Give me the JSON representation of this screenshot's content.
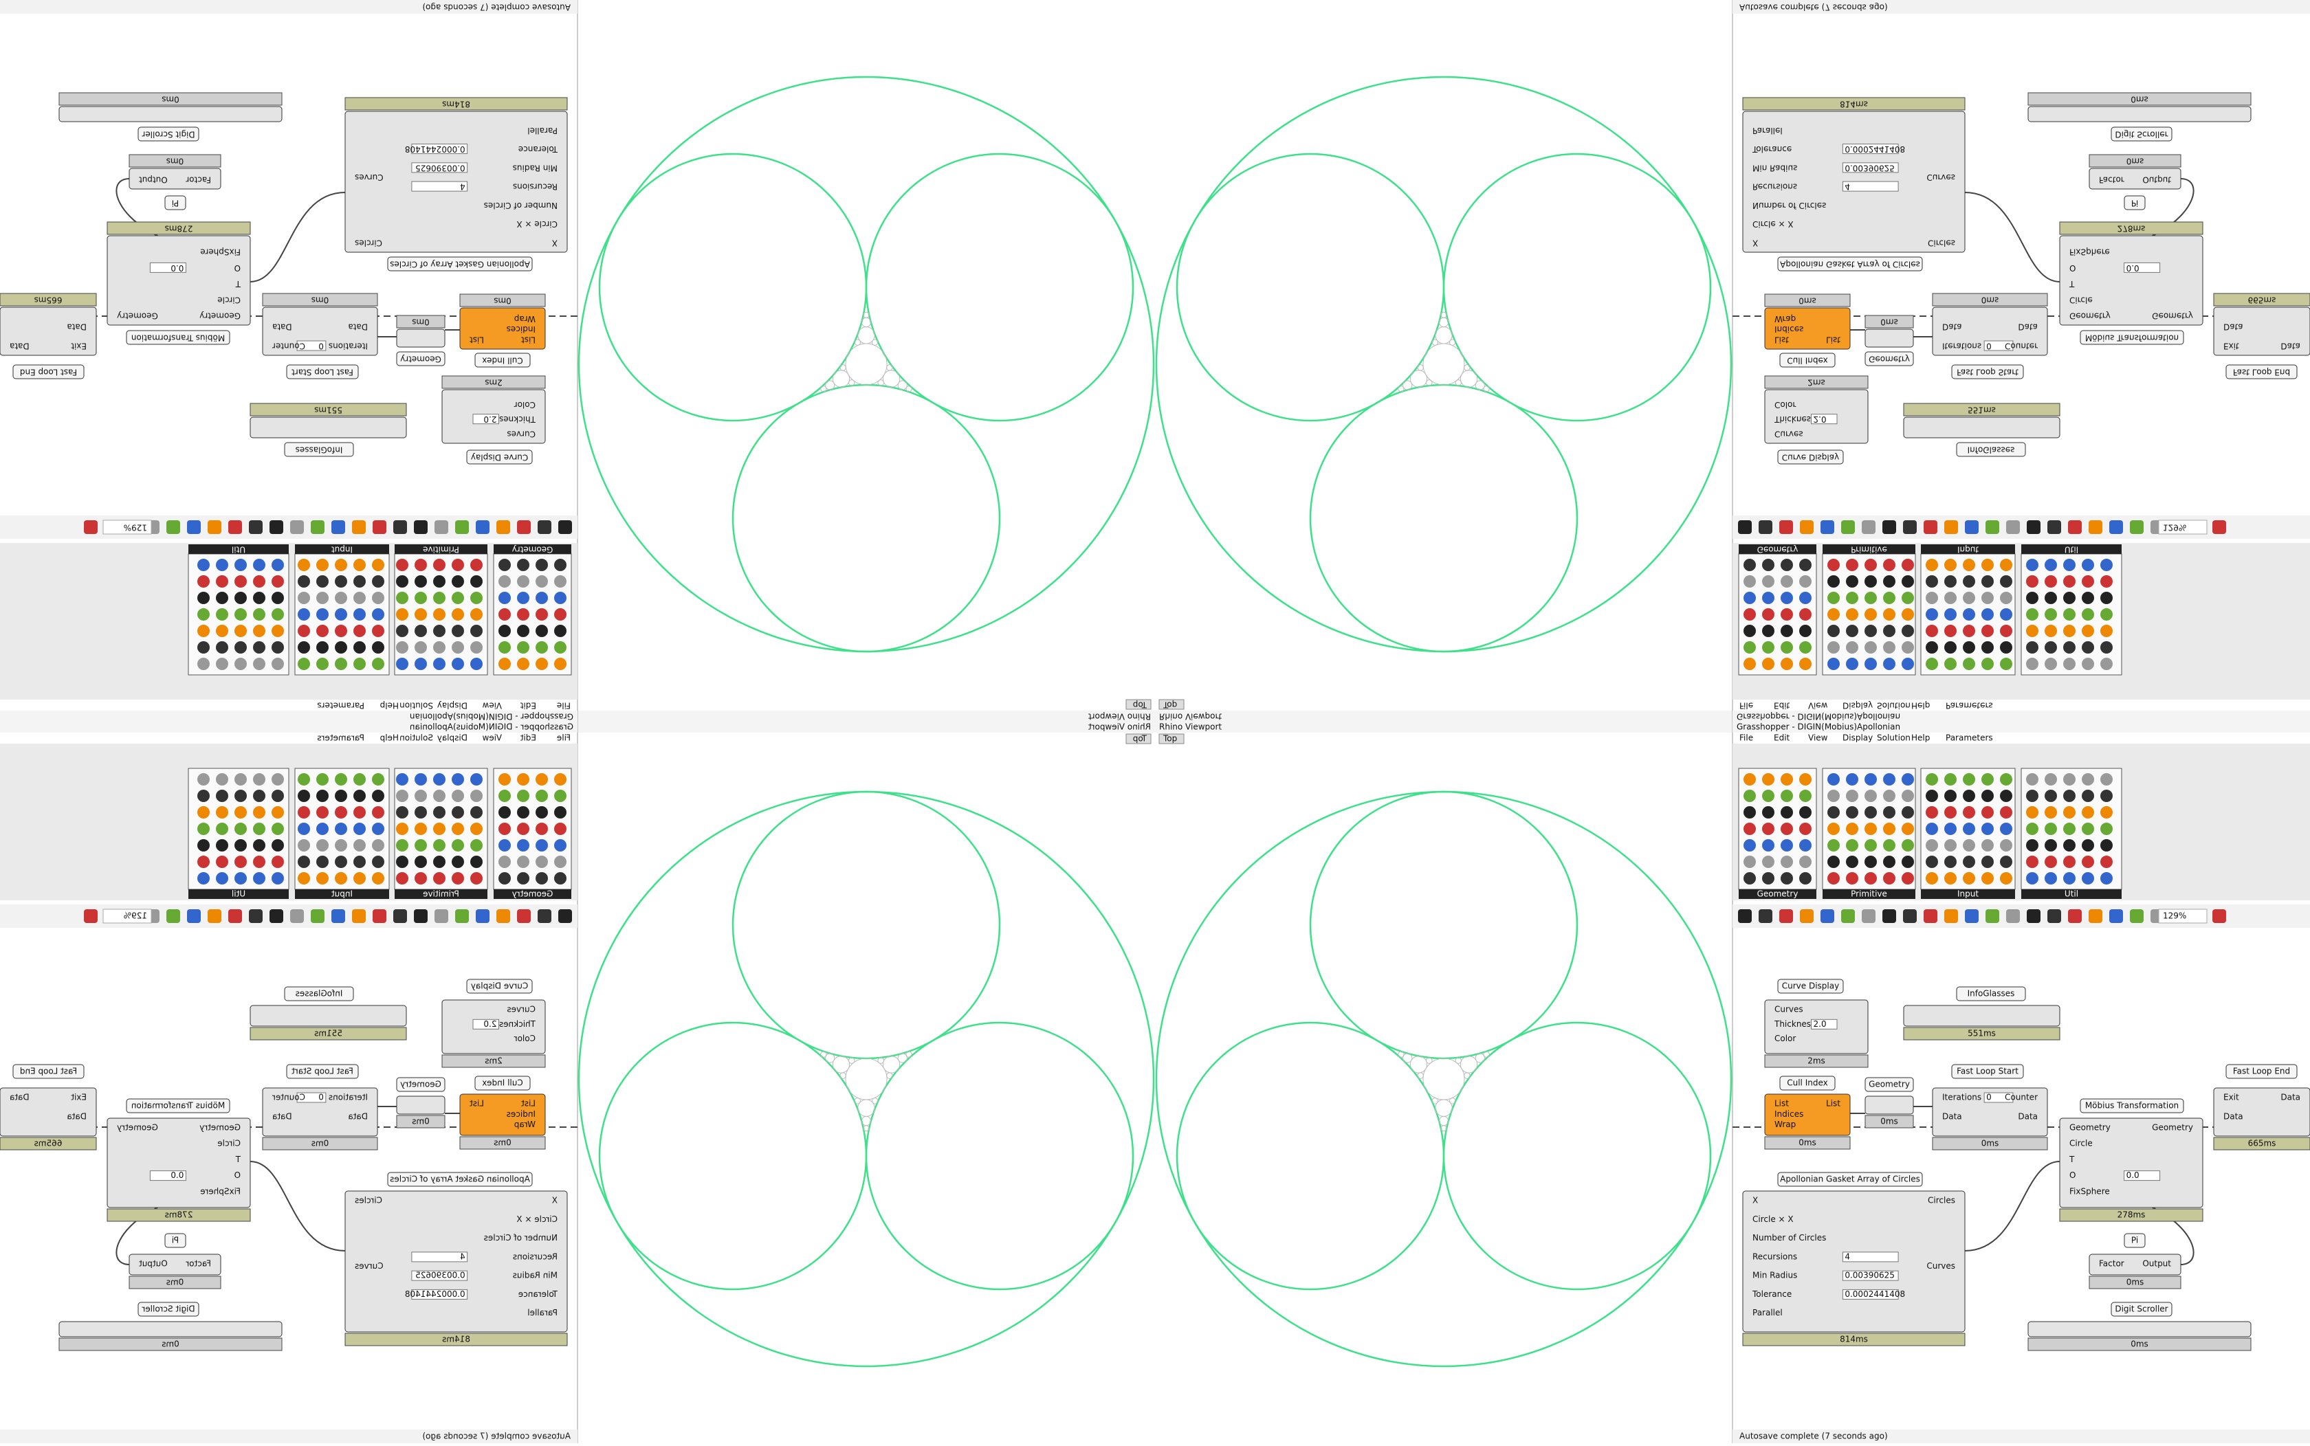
{
  "window_title": "Grasshopper - DIGIN(Mobius)Apollonian",
  "viewport_title": "Rhino Viewport",
  "view_button": "Top",
  "menu": [
    "File",
    "Edit",
    "View",
    "Display",
    "Solution",
    "Help",
    "Parameters"
  ],
  "tabs": [
    "Geometry",
    "Primitive",
    "Input",
    "Util"
  ],
  "zoom": "129%",
  "status": "Autosave complete (7 seconds ago)",
  "components": [
    {
      "title": "Curve Display",
      "inputs": [
        "Curves",
        {
          "name": "Thickness",
          "value": "2.0"
        },
        "Color"
      ],
      "outputs": [],
      "time": "2ms"
    },
    {
      "title": "InfoGlasses",
      "inputs": [],
      "outputs": [],
      "time": "551ms"
    },
    {
      "title": "Cull Index",
      "inputs": [
        "List",
        "Indices",
        "Wrap"
      ],
      "outputs": [
        "List"
      ],
      "time": "0ms"
    },
    {
      "title": "Geometry",
      "inputs": [],
      "outputs": [],
      "time": "0ms"
    },
    {
      "title": "Fast Loop Start",
      "inputs": [
        {
          "name": "Iterations",
          "value": "0"
        },
        "Data"
      ],
      "outputs": [
        "Counter",
        "Data"
      ],
      "time": "0ms"
    },
    {
      "title": "Fast Loop End",
      "inputs": [
        "Exit",
        "Data"
      ],
      "outputs": [
        "Data"
      ],
      "time": "665ms"
    },
    {
      "title": "Möbius Transformation",
      "inputs": [
        "Geometry",
        "Circle",
        "T",
        {
          "name": "O",
          "value": "0.0"
        },
        "FixSphere"
      ],
      "outputs": [
        "Geometry"
      ],
      "time": "278ms"
    },
    {
      "title": "Apollonian Gasket Array of Circles",
      "inputs": [
        "X",
        "Circle × X",
        "Number of Circles",
        {
          "name": "Recursions",
          "value": "4"
        },
        {
          "name": "Min Radius",
          "value": "0.00390625"
        },
        {
          "name": "Tolerance",
          "value": "0.0002441408"
        },
        "Parallel"
      ],
      "outputs": [
        "Circles",
        "Curves"
      ],
      "time": "814ms"
    },
    {
      "title": "Pi",
      "inputs": [
        "Factor"
      ],
      "outputs": [
        "Output"
      ],
      "time": "0ms"
    },
    {
      "title": "Digit Scroller",
      "inputs": [],
      "outputs": [],
      "time": "0ms"
    }
  ]
}
